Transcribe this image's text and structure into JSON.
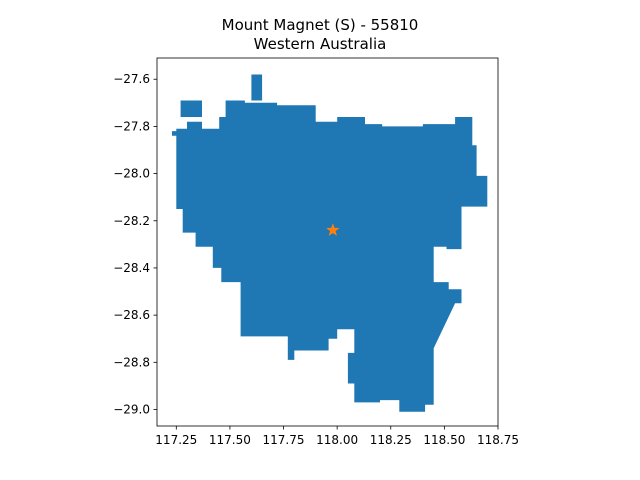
{
  "chart_data": {
    "type": "map",
    "title": "Mount Magnet (S) - 55810",
    "subtitle": "Western Australia",
    "xlim": [
      117.16,
      118.75
    ],
    "ylim": [
      -29.07,
      -27.51
    ],
    "x_ticks": [
      "117.25",
      "117.50",
      "117.75",
      "118.00",
      "118.25",
      "118.50",
      "118.75"
    ],
    "x_tick_values": [
      117.25,
      117.5,
      117.75,
      118.0,
      118.25,
      118.5,
      118.75
    ],
    "y_ticks": [
      "−27.6",
      "−27.8",
      "−28.0",
      "−28.2",
      "−28.4",
      "−28.6",
      "−28.8",
      "−29.0"
    ],
    "y_tick_values": [
      -27.6,
      -27.8,
      -28.0,
      -28.2,
      -28.4,
      -28.6,
      -28.8,
      -29.0
    ],
    "region_color": "#1f77b4",
    "marker_color": "#ff7f0e",
    "marker": {
      "shape": "star",
      "lon": 117.98,
      "lat": -28.24
    },
    "region_outline": [
      [
        117.6,
        -27.58
      ],
      [
        117.65,
        -27.58
      ],
      [
        117.65,
        -27.69
      ],
      [
        117.57,
        -27.69
      ],
      [
        117.57,
        -27.7
      ],
      [
        117.72,
        -27.7
      ],
      [
        117.72,
        -27.71
      ],
      [
        117.9,
        -27.71
      ],
      [
        117.9,
        -27.78
      ],
      [
        118.0,
        -27.78
      ],
      [
        118.0,
        -27.76
      ],
      [
        118.13,
        -27.76
      ],
      [
        118.13,
        -27.79
      ],
      [
        118.21,
        -27.79
      ],
      [
        118.21,
        -27.8
      ],
      [
        118.4,
        -27.8
      ],
      [
        118.4,
        -27.79
      ],
      [
        118.55,
        -27.79
      ],
      [
        118.55,
        -27.76
      ],
      [
        118.63,
        -27.76
      ],
      [
        118.63,
        -27.88
      ],
      [
        118.65,
        -27.88
      ],
      [
        118.65,
        -28.01
      ],
      [
        118.7,
        -28.01
      ],
      [
        118.7,
        -28.14
      ],
      [
        118.58,
        -28.14
      ],
      [
        118.58,
        -28.32
      ],
      [
        118.51,
        -28.32
      ],
      [
        118.51,
        -28.31
      ],
      [
        118.45,
        -28.31
      ],
      [
        118.45,
        -28.46
      ],
      [
        118.52,
        -28.46
      ],
      [
        118.52,
        -28.49
      ],
      [
        118.58,
        -28.49
      ],
      [
        118.58,
        -28.55
      ],
      [
        118.55,
        -28.55
      ],
      [
        118.45,
        -28.74
      ],
      [
        118.45,
        -28.98
      ],
      [
        118.41,
        -28.98
      ],
      [
        118.41,
        -29.01
      ],
      [
        118.29,
        -29.01
      ],
      [
        118.29,
        -28.96
      ],
      [
        118.2,
        -28.96
      ],
      [
        118.2,
        -28.97
      ],
      [
        118.08,
        -28.97
      ],
      [
        118.08,
        -28.89
      ],
      [
        118.05,
        -28.89
      ],
      [
        118.05,
        -28.84
      ],
      [
        118.05,
        -28.76
      ],
      [
        118.08,
        -28.76
      ],
      [
        118.08,
        -28.66
      ],
      [
        118.0,
        -28.66
      ],
      [
        118.0,
        -28.7
      ],
      [
        117.96,
        -28.7
      ],
      [
        117.96,
        -28.75
      ],
      [
        117.8,
        -28.75
      ],
      [
        117.8,
        -28.79
      ],
      [
        117.77,
        -28.79
      ],
      [
        117.77,
        -28.69
      ],
      [
        117.55,
        -28.69
      ],
      [
        117.55,
        -28.46
      ],
      [
        117.46,
        -28.46
      ],
      [
        117.46,
        -28.4
      ],
      [
        117.42,
        -28.4
      ],
      [
        117.42,
        -28.31
      ],
      [
        117.34,
        -28.31
      ],
      [
        117.34,
        -28.25
      ],
      [
        117.28,
        -28.25
      ],
      [
        117.28,
        -28.15
      ],
      [
        117.25,
        -28.15
      ],
      [
        117.25,
        -27.84
      ],
      [
        117.23,
        -27.84
      ],
      [
        117.23,
        -27.82
      ],
      [
        117.25,
        -27.82
      ],
      [
        117.25,
        -27.81
      ],
      [
        117.3,
        -27.81
      ],
      [
        117.3,
        -27.78
      ],
      [
        117.37,
        -27.78
      ],
      [
        117.37,
        -27.81
      ],
      [
        117.45,
        -27.81
      ],
      [
        117.45,
        -27.76
      ],
      [
        117.48,
        -27.76
      ],
      [
        117.48,
        -27.69
      ],
      [
        117.6,
        -27.69
      ]
    ],
    "extra_patches": [
      [
        [
          117.27,
          -27.69
        ],
        [
          117.37,
          -27.69
        ],
        [
          117.37,
          -27.76
        ],
        [
          117.27,
          -27.76
        ]
      ]
    ]
  }
}
